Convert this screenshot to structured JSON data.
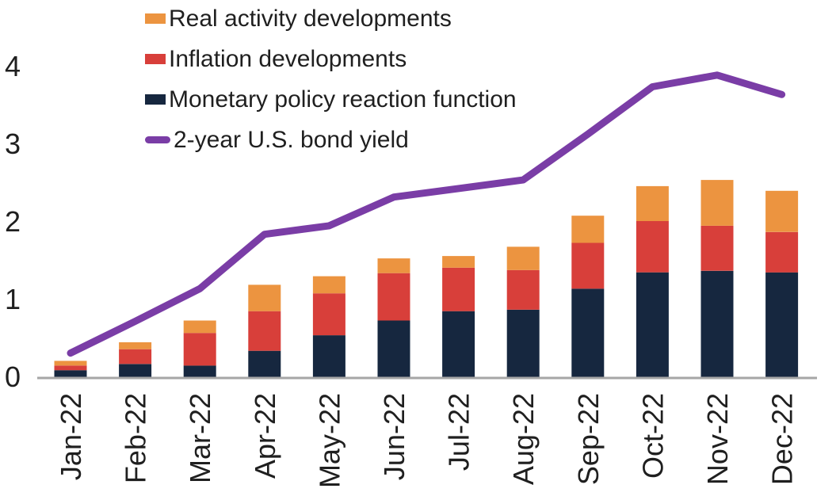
{
  "chart_data": {
    "type": "bar",
    "stacked": true,
    "title": "",
    "xlabel": "",
    "ylabel": "",
    "ylim": [
      0,
      4
    ],
    "yticks": [
      0,
      1,
      2,
      3,
      4
    ],
    "grid": false,
    "legend_position": "top-left",
    "axis_color": "#A6A6A6",
    "text_color": "#1f1f1f",
    "categories": [
      "Jan-22",
      "Feb-22",
      "Mar-22",
      "Apr-22",
      "May-22",
      "Jun-22",
      "Jul-22",
      "Aug-22",
      "Sep-22",
      "Oct-22",
      "Nov-22",
      "Dec-22"
    ],
    "series": [
      {
        "name": "Monetary policy reaction function",
        "kind": "stacked-bar",
        "color": "#16273F",
        "values": [
          0.1,
          0.18,
          0.16,
          0.35,
          0.55,
          0.74,
          0.86,
          0.88,
          1.15,
          1.36,
          1.38,
          1.36
        ]
      },
      {
        "name": "Inflation developments",
        "kind": "stacked-bar",
        "color": "#D83F3A",
        "values": [
          0.06,
          0.19,
          0.42,
          0.51,
          0.54,
          0.61,
          0.56,
          0.51,
          0.59,
          0.66,
          0.58,
          0.52
        ]
      },
      {
        "name": "Real activity developments",
        "kind": "stacked-bar",
        "color": "#EC9440",
        "values": [
          0.06,
          0.09,
          0.16,
          0.34,
          0.22,
          0.19,
          0.15,
          0.3,
          0.35,
          0.45,
          0.59,
          0.53
        ]
      },
      {
        "name": "2-year U.S. bond yield",
        "kind": "line",
        "color": "#7A3DA6",
        "values": [
          0.32,
          0.73,
          1.15,
          1.85,
          1.96,
          2.33,
          2.44,
          2.55,
          3.14,
          3.75,
          3.9,
          3.65
        ]
      }
    ]
  }
}
